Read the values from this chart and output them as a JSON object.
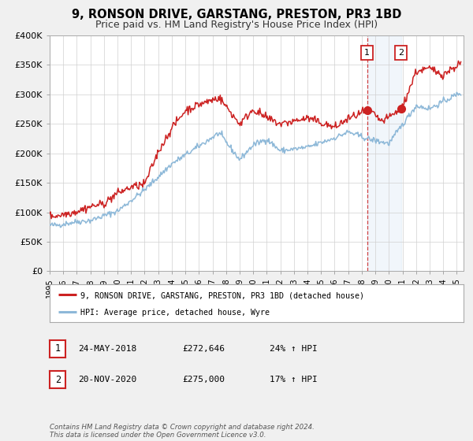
{
  "title": "9, RONSON DRIVE, GARSTANG, PRESTON, PR3 1BD",
  "subtitle": "Price paid vs. HM Land Registry's House Price Index (HPI)",
  "ylim": [
    0,
    400000
  ],
  "yticks": [
    0,
    50000,
    100000,
    150000,
    200000,
    250000,
    300000,
    350000,
    400000
  ],
  "ytick_labels": [
    "£0",
    "£50K",
    "£100K",
    "£150K",
    "£200K",
    "£250K",
    "£300K",
    "£350K",
    "£400K"
  ],
  "xlim_start": 1995.0,
  "xlim_end": 2025.5,
  "xtick_years": [
    1995,
    1996,
    1997,
    1998,
    1999,
    2000,
    2001,
    2002,
    2003,
    2004,
    2005,
    2006,
    2007,
    2008,
    2009,
    2010,
    2011,
    2012,
    2013,
    2014,
    2015,
    2016,
    2017,
    2018,
    2019,
    2020,
    2021,
    2022,
    2023,
    2024,
    2025
  ],
  "sale1_x": 2018.39,
  "sale1_y": 272646,
  "sale1_label": "1",
  "sale1_date": "24-MAY-2018",
  "sale1_price": "£272,646",
  "sale1_hpi": "24% ↑ HPI",
  "sale2_x": 2020.9,
  "sale2_y": 275000,
  "sale2_label": "2",
  "sale2_date": "20-NOV-2020",
  "sale2_price": "£275,000",
  "sale2_hpi": "17% ↑ HPI",
  "line_color_hpi": "#8db8d8",
  "line_color_price": "#cc2222",
  "dot_color": "#cc2222",
  "background_color": "#f0f0f0",
  "plot_bg_color": "#ffffff",
  "shade_color": "#c8dff0",
  "legend_label_price": "9, RONSON DRIVE, GARSTANG, PRESTON, PR3 1BD (detached house)",
  "legend_label_hpi": "HPI: Average price, detached house, Wyre",
  "footer_text": "Contains HM Land Registry data © Crown copyright and database right 2024.\nThis data is licensed under the Open Government Licence v3.0.",
  "title_fontsize": 10.5,
  "subtitle_fontsize": 9.0
}
